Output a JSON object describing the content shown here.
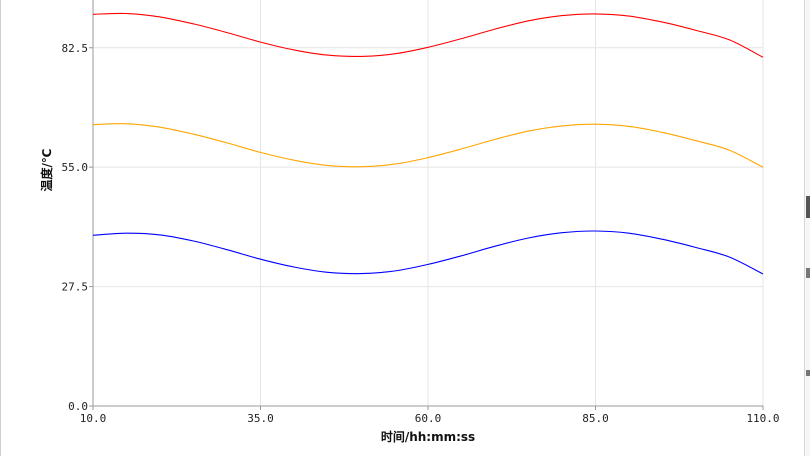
{
  "chart_data": {
    "type": "line",
    "title": "",
    "xlabel": "时间/hh:mm:ss",
    "ylabel": "温度/℃",
    "xlim": [
      10.0,
      110.0
    ],
    "ylim": [
      0.0,
      93.5
    ],
    "x_ticks": [
      "10.0",
      "35.0",
      "60.0",
      "85.0",
      "110.0"
    ],
    "y_ticks": [
      "0.0",
      "27.5",
      "55.0",
      "82.5"
    ],
    "x_tick_values": [
      10,
      35,
      60,
      85,
      110
    ],
    "y_tick_values": [
      0,
      27.5,
      55,
      82.5
    ],
    "grid": true,
    "x": [
      10,
      15,
      20,
      25,
      30,
      35,
      40,
      45,
      50,
      55,
      60,
      65,
      70,
      75,
      80,
      85,
      90,
      95,
      100,
      105,
      110
    ],
    "series": [
      {
        "color": "#ff0000",
        "values": [
          90.2,
          90.4,
          89.6,
          88.0,
          86.0,
          83.8,
          82.0,
          80.8,
          80.5,
          81.1,
          82.6,
          84.6,
          86.8,
          88.7,
          89.9,
          90.3,
          89.8,
          88.4,
          86.5,
          84.3,
          80.3
        ]
      },
      {
        "color": "#ffa500",
        "values": [
          64.8,
          65.0,
          64.2,
          62.6,
          60.6,
          58.4,
          56.6,
          55.4,
          55.1,
          55.7,
          57.2,
          59.2,
          61.4,
          63.3,
          64.5,
          64.9,
          64.4,
          63.0,
          61.1,
          58.9,
          55.0
        ]
      },
      {
        "color": "#0000ff",
        "values": [
          39.3,
          39.8,
          39.4,
          38.0,
          36.0,
          33.8,
          32.0,
          30.8,
          30.5,
          31.1,
          32.6,
          34.6,
          36.8,
          38.7,
          39.9,
          40.3,
          39.8,
          38.4,
          36.5,
          34.3,
          30.4
        ]
      }
    ]
  }
}
